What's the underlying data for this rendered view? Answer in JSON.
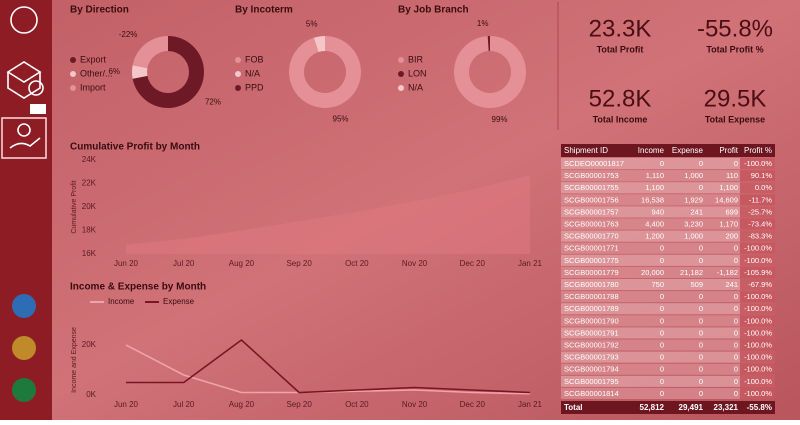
{
  "donuts": [
    {
      "title": "By Direction",
      "categories": [
        "Export",
        "Other/...",
        "Import"
      ],
      "values": [
        72,
        6,
        -22
      ],
      "value_labels": [
        "72%",
        "6%",
        "-22%"
      ],
      "colors": [
        "#6e1a26",
        "#f4c6c9",
        "#e58f97"
      ]
    },
    {
      "title": "By Incoterm",
      "categories": [
        "FOB",
        "N/A",
        "PPD"
      ],
      "values": [
        95,
        5,
        null
      ],
      "value_labels": [
        "95%",
        "5%",
        null
      ],
      "colors": [
        "#e58f97",
        "#f4c6c9",
        "#6e1a26"
      ]
    },
    {
      "title": "By Job Branch",
      "categories": [
        "BIR",
        "LON",
        "N/A"
      ],
      "values": [
        99,
        1,
        null
      ],
      "value_labels": [
        "99%",
        "1%",
        null
      ],
      "colors": [
        "#e58f97",
        "#6e1a26",
        "#f4c6c9"
      ]
    }
  ],
  "kpis": [
    {
      "value": "23.3K",
      "label": "Total Profit"
    },
    {
      "value": "-55.8%",
      "label": "Total Profit %"
    },
    {
      "value": "52.8K",
      "label": "Total Income"
    },
    {
      "value": "29.5K",
      "label": "Total Expense"
    }
  ],
  "cumulative": {
    "type": "area",
    "title": "Cumulative Profit by Month",
    "y_label": "Cumulative Profit",
    "x": [
      "Jun 20",
      "Jul 20",
      "Aug 20",
      "Sep 20",
      "Oct 20",
      "Nov 20",
      "Dec 20",
      "Jan 21"
    ],
    "values": [
      16800,
      17300,
      18000,
      18800,
      19600,
      20500,
      21500,
      22700
    ],
    "color": "#e07880",
    "ylim": [
      16000,
      24000
    ],
    "yticks": [
      {
        "value": 16000,
        "label": "16K"
      },
      {
        "value": 18000,
        "label": "18K"
      },
      {
        "value": 20000,
        "label": "20K"
      },
      {
        "value": 22000,
        "label": "22K"
      },
      {
        "value": 24000,
        "label": "24K"
      }
    ]
  },
  "income_expense": {
    "type": "line",
    "title": "Income & Expense by Month",
    "y_label": "Income and Expense",
    "x": [
      "Jun 20",
      "Jul 20",
      "Aug 20",
      "Sep 20",
      "Oct 20",
      "Nov 20",
      "Dec 20",
      "Jan 21"
    ],
    "series": [
      {
        "name": "Income",
        "color": "#f0a3a9",
        "values": [
          20000,
          8000,
          1000,
          1000,
          1500,
          2000,
          1000,
          500
        ]
      },
      {
        "name": "Expense",
        "color": "#7a1624",
        "values": [
          5000,
          5000,
          22000,
          1000,
          2000,
          3000,
          2000,
          1000
        ]
      }
    ],
    "ylim": [
      0,
      28000
    ],
    "yticks": [
      {
        "value": 0,
        "label": "0K"
      },
      {
        "value": 20000,
        "label": "20K"
      }
    ]
  },
  "table": {
    "columns": [
      "Shipment ID",
      "Income",
      "Expense",
      "Profit",
      "Profit %"
    ],
    "rows": [
      [
        "SCDEO00001817",
        "0",
        "0",
        "0",
        "-100.0%"
      ],
      [
        "SCGB00001753",
        "1,110",
        "1,000",
        "110",
        "90.1%"
      ],
      [
        "SCGB00001755",
        "1,100",
        "0",
        "1,100",
        "0.0%"
      ],
      [
        "SCGB00001756",
        "16,538",
        "1,929",
        "14,609",
        "-11.7%"
      ],
      [
        "SCGB00001757",
        "940",
        "241",
        "699",
        "-25.7%"
      ],
      [
        "SCGB00001763",
        "4,400",
        "3,230",
        "1,170",
        "-73.4%"
      ],
      [
        "SCGB00001770",
        "1,200",
        "1,000",
        "200",
        "-83.3%"
      ],
      [
        "SCGB00001771",
        "0",
        "0",
        "0",
        "-100.0%"
      ],
      [
        "SCGB00001775",
        "0",
        "0",
        "0",
        "-100.0%"
      ],
      [
        "SCGB00001779",
        "20,000",
        "21,182",
        "-1,182",
        "-105.9%"
      ],
      [
        "SCGB00001780",
        "750",
        "509",
        "241",
        "-67.9%"
      ],
      [
        "SCGB00001788",
        "0",
        "0",
        "0",
        "-100.0%"
      ],
      [
        "SCGB00001789",
        "0",
        "0",
        "0",
        "-100.0%"
      ],
      [
        "SCGB00001790",
        "0",
        "0",
        "0",
        "-100.0%"
      ],
      [
        "SCGB00001791",
        "0",
        "0",
        "0",
        "-100.0%"
      ],
      [
        "SCGB00001792",
        "0",
        "0",
        "0",
        "-100.0%"
      ],
      [
        "SCGB00001793",
        "0",
        "0",
        "0",
        "-100.0%"
      ],
      [
        "SCGB00001794",
        "0",
        "0",
        "0",
        "-100.0%"
      ],
      [
        "SCGB00001795",
        "0",
        "0",
        "0",
        "-100.0%"
      ],
      [
        "SCGB00001814",
        "0",
        "0",
        "0",
        "-100.0%"
      ]
    ],
    "total": [
      "Total",
      "52,812",
      "29,491",
      "23,321",
      "-55.8%"
    ]
  }
}
